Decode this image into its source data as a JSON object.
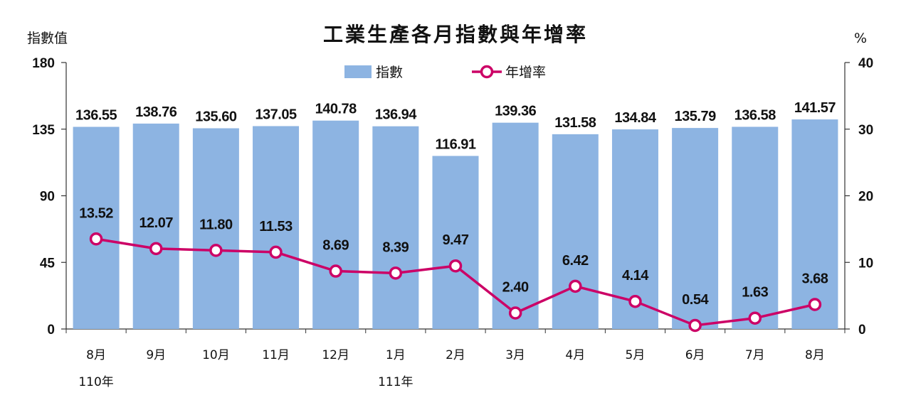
{
  "chart_data": {
    "type": "bar",
    "title": "工業生產各月指數與年增率",
    "ylabel_left": "指數值",
    "ylabel_right": "%",
    "ylim_left": [
      0,
      180
    ],
    "ylim_right": [
      0,
      40
    ],
    "yticks_left": [
      "0",
      "45",
      "90",
      "135",
      "180"
    ],
    "yticks_right": [
      "0",
      "10",
      "20",
      "30",
      "40"
    ],
    "legend_position": "top-center",
    "grid": false,
    "categories": [
      "8月",
      "9月",
      "10月",
      "11月",
      "12月",
      "1月",
      "2月",
      "3月",
      "4月",
      "5月",
      "6月",
      "7月",
      "8月"
    ],
    "year_labels": [
      {
        "index": 0,
        "text": "110年"
      },
      {
        "index": 5,
        "text": "111年"
      }
    ],
    "series": [
      {
        "name": "指數",
        "type": "bar",
        "axis": "left",
        "color": "#8db4e2",
        "values": [
          136.55,
          138.76,
          135.6,
          137.05,
          140.78,
          136.94,
          116.91,
          139.36,
          131.58,
          134.84,
          135.79,
          136.58,
          141.57
        ],
        "labels": [
          "136.55",
          "138.76",
          "135.60",
          "137.05",
          "140.78",
          "136.94",
          "116.91",
          "139.36",
          "131.58",
          "134.84",
          "135.79",
          "136.58",
          "141.57"
        ]
      },
      {
        "name": "年增率",
        "type": "line",
        "axis": "right",
        "color": "#cc0066",
        "values": [
          13.52,
          12.07,
          11.8,
          11.53,
          8.69,
          8.39,
          9.47,
          2.4,
          6.42,
          4.14,
          0.54,
          1.63,
          3.68
        ],
        "labels": [
          "13.52",
          "12.07",
          "11.80",
          "11.53",
          "8.69",
          "8.39",
          "9.47",
          "2.40",
          "6.42",
          "4.14",
          "0.54",
          "1.63",
          "3.68"
        ]
      }
    ]
  }
}
